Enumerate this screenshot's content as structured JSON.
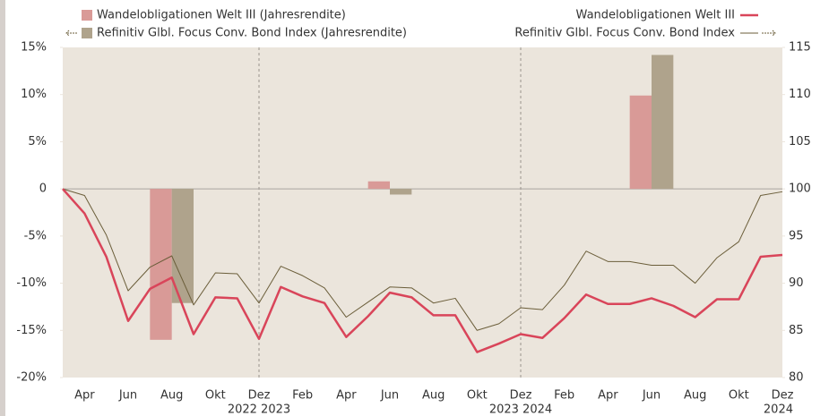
{
  "chart_data": {
    "type": "bar-line",
    "categories": [
      null,
      "Apr",
      null,
      "Jun",
      null,
      "Aug",
      null,
      "Okt",
      null,
      "Dez",
      null,
      "Feb",
      null,
      "Apr",
      null,
      "Jun",
      null,
      "Aug",
      null,
      "Okt",
      null,
      "Dez",
      null,
      "Feb",
      null,
      "Apr",
      null,
      "Jun",
      null,
      "Aug",
      null,
      "Okt",
      null,
      "Dez"
    ],
    "year_labels": [
      {
        "at": 9,
        "label": "2022 2023"
      },
      {
        "at": 21,
        "label": "2023 2024"
      },
      {
        "at": 33,
        "label": "2024"
      }
    ],
    "ylim": [
      -20,
      15
    ],
    "yticks": [
      {
        "value": 15,
        "label": "15%"
      },
      {
        "value": 10,
        "label": "10%"
      },
      {
        "value": 5,
        "label": "5%"
      },
      0,
      {
        "value": -5,
        "label": "-5%"
      },
      {
        "value": -10,
        "label": "-10%"
      },
      {
        "value": -15,
        "label": "-15%"
      },
      {
        "value": -20,
        "label": "-20%"
      }
    ],
    "y2lim": [
      80,
      115
    ],
    "y2ticks": [
      115,
      110,
      105,
      100,
      95,
      90,
      85,
      80
    ],
    "series": [
      {
        "name": "Wandelobligationen Welt III (Jahresrendite)",
        "type": "bar",
        "color": "#d99a97",
        "values": [
          null,
          null,
          null,
          null,
          null,
          -16.0,
          null,
          null,
          null,
          null,
          null,
          null,
          null,
          null,
          null,
          0.8,
          null,
          null,
          null,
          null,
          null,
          null,
          null,
          null,
          null,
          null,
          null,
          9.9,
          null,
          null,
          null,
          null,
          null,
          null
        ]
      },
      {
        "name": "Refinitiv Glbl. Focus Conv. Bond Index (Jahresrendite)",
        "type": "bar",
        "color": "#afa38c",
        "values": [
          null,
          null,
          null,
          null,
          null,
          -12.1,
          null,
          null,
          null,
          null,
          null,
          null,
          null,
          null,
          null,
          -0.6,
          null,
          null,
          null,
          null,
          null,
          null,
          null,
          null,
          null,
          null,
          null,
          14.2,
          null,
          null,
          null,
          null,
          null,
          null
        ]
      },
      {
        "name": "Wandelobligationen Welt III",
        "type": "line",
        "axis": "y2",
        "color": "#d9455a",
        "values": [
          100,
          97.4,
          92.8,
          86.0,
          89.4,
          90.6,
          84.6,
          88.5,
          88.4,
          84.1,
          89.6,
          88.6,
          87.9,
          84.3,
          86.5,
          89.0,
          88.5,
          86.6,
          86.6,
          82.7,
          83.6,
          84.6,
          84.2,
          86.3,
          88.8,
          87.8,
          87.8,
          88.4,
          87.6,
          86.4,
          88.3,
          88.3,
          92.8,
          93.0
        ]
      },
      {
        "name": "Refinitiv Glbl. Focus Conv. Bond Index",
        "type": "line",
        "axis": "y2",
        "color": "#6b5e3a",
        "values": [
          100,
          99.3,
          95.1,
          89.2,
          91.7,
          92.9,
          87.7,
          91.1,
          91.0,
          87.9,
          91.8,
          90.8,
          89.5,
          86.4,
          88.0,
          89.6,
          89.5,
          87.9,
          88.4,
          85.0,
          85.7,
          87.4,
          87.2,
          89.8,
          93.4,
          92.3,
          92.3,
          91.9,
          91.9,
          90.0,
          92.7,
          94.4,
          99.3,
          99.7
        ]
      }
    ]
  }
}
